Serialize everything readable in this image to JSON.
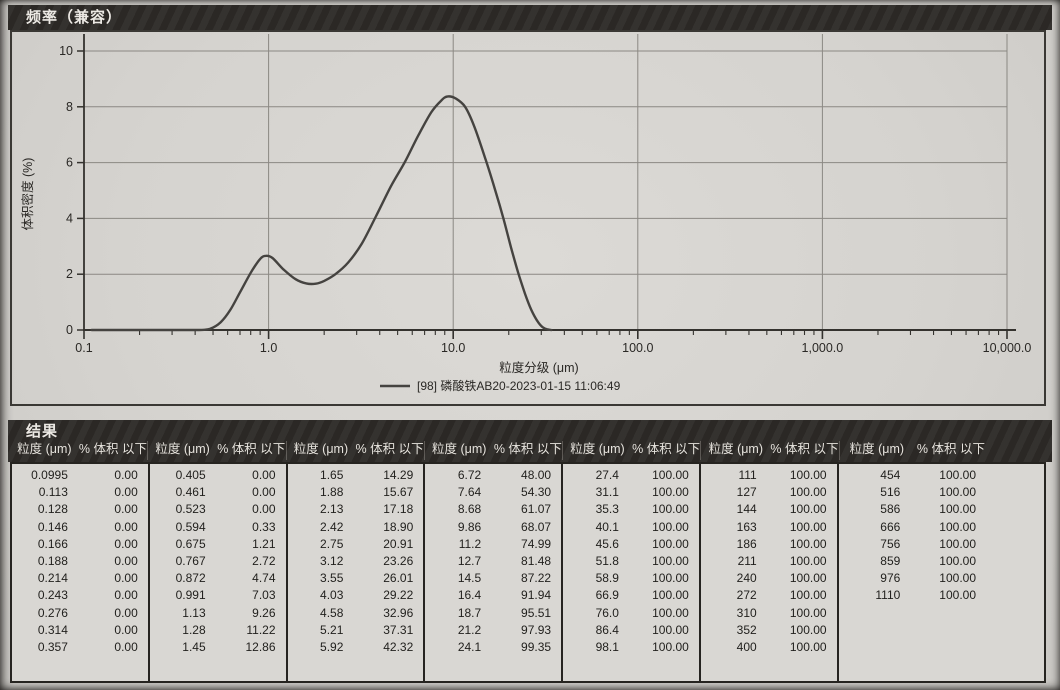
{
  "chart_data": {
    "type": "line",
    "title": "频率（兼容）",
    "xlabel": "粒度分级 (μm)",
    "ylabel": "体积密度 (%)",
    "x_scale": "log",
    "xlim": [
      0.1,
      10000
    ],
    "ylim": [
      0,
      10
    ],
    "x_tick_values": [
      0.1,
      1,
      10,
      100,
      1000,
      10000
    ],
    "x_tick_labels": [
      "0.1",
      "1.0",
      "10.0",
      "100.0",
      "1,000.0",
      "10,000.0"
    ],
    "y_ticks": [
      0,
      2,
      4,
      6,
      8,
      10
    ],
    "grid": true,
    "legend_position": "bottom-center",
    "series": [
      {
        "name": "[98] 磷酸铁AB20-2023-01-15 11:06:49",
        "color": "#454340",
        "x": [
          0.11,
          0.2,
          0.3,
          0.42,
          0.48,
          0.55,
          0.62,
          0.7,
          0.8,
          0.9,
          0.97,
          1.05,
          1.2,
          1.4,
          1.6,
          1.8,
          2.0,
          2.3,
          2.7,
          3.2,
          3.8,
          4.6,
          5.5,
          6.5,
          7.6,
          8.6,
          9.3,
          10.3,
          11.6,
          13.0,
          15.0,
          17.0,
          18.7,
          20.5,
          22.5,
          24.5,
          26.5,
          28.5,
          30.5,
          32.5,
          34.0
        ],
        "y": [
          0,
          0,
          0,
          0,
          0.04,
          0.28,
          0.72,
          1.35,
          2.05,
          2.55,
          2.66,
          2.58,
          2.18,
          1.82,
          1.67,
          1.66,
          1.76,
          2.0,
          2.42,
          3.1,
          4.05,
          5.15,
          6.05,
          7.0,
          7.8,
          8.22,
          8.37,
          8.3,
          8.0,
          7.3,
          6.1,
          4.95,
          4.0,
          3.0,
          2.05,
          1.3,
          0.72,
          0.33,
          0.1,
          0.02,
          0
        ]
      }
    ]
  },
  "table": {
    "title": "结果",
    "column_headers": {
      "size": "粒度 (μm)",
      "pct": "% 体积 以下"
    },
    "groups": [
      [
        [
          "0.0995",
          "0.00"
        ],
        [
          "0.113",
          "0.00"
        ],
        [
          "0.128",
          "0.00"
        ],
        [
          "0.146",
          "0.00"
        ],
        [
          "0.166",
          "0.00"
        ],
        [
          "0.188",
          "0.00"
        ],
        [
          "0.214",
          "0.00"
        ],
        [
          "0.243",
          "0.00"
        ],
        [
          "0.276",
          "0.00"
        ],
        [
          "0.314",
          "0.00"
        ],
        [
          "0.357",
          "0.00"
        ]
      ],
      [
        [
          "0.405",
          "0.00"
        ],
        [
          "0.461",
          "0.00"
        ],
        [
          "0.523",
          "0.00"
        ],
        [
          "0.594",
          "0.33"
        ],
        [
          "0.675",
          "1.21"
        ],
        [
          "0.767",
          "2.72"
        ],
        [
          "0.872",
          "4.74"
        ],
        [
          "0.991",
          "7.03"
        ],
        [
          "1.13",
          "9.26"
        ],
        [
          "1.28",
          "11.22"
        ],
        [
          "1.45",
          "12.86"
        ]
      ],
      [
        [
          "1.65",
          "14.29"
        ],
        [
          "1.88",
          "15.67"
        ],
        [
          "2.13",
          "17.18"
        ],
        [
          "2.42",
          "18.90"
        ],
        [
          "2.75",
          "20.91"
        ],
        [
          "3.12",
          "23.26"
        ],
        [
          "3.55",
          "26.01"
        ],
        [
          "4.03",
          "29.22"
        ],
        [
          "4.58",
          "32.96"
        ],
        [
          "5.21",
          "37.31"
        ],
        [
          "5.92",
          "42.32"
        ]
      ],
      [
        [
          "6.72",
          "48.00"
        ],
        [
          "7.64",
          "54.30"
        ],
        [
          "8.68",
          "61.07"
        ],
        [
          "9.86",
          "68.07"
        ],
        [
          "11.2",
          "74.99"
        ],
        [
          "12.7",
          "81.48"
        ],
        [
          "14.5",
          "87.22"
        ],
        [
          "16.4",
          "91.94"
        ],
        [
          "18.7",
          "95.51"
        ],
        [
          "21.2",
          "97.93"
        ],
        [
          "24.1",
          "99.35"
        ]
      ],
      [
        [
          "27.4",
          "100.00"
        ],
        [
          "31.1",
          "100.00"
        ],
        [
          "35.3",
          "100.00"
        ],
        [
          "40.1",
          "100.00"
        ],
        [
          "45.6",
          "100.00"
        ],
        [
          "51.8",
          "100.00"
        ],
        [
          "58.9",
          "100.00"
        ],
        [
          "66.9",
          "100.00"
        ],
        [
          "76.0",
          "100.00"
        ],
        [
          "86.4",
          "100.00"
        ],
        [
          "98.1",
          "100.00"
        ]
      ],
      [
        [
          "111",
          "100.00"
        ],
        [
          "127",
          "100.00"
        ],
        [
          "144",
          "100.00"
        ],
        [
          "163",
          "100.00"
        ],
        [
          "186",
          "100.00"
        ],
        [
          "211",
          "100.00"
        ],
        [
          "240",
          "100.00"
        ],
        [
          "272",
          "100.00"
        ],
        [
          "310",
          "100.00"
        ],
        [
          "352",
          "100.00"
        ],
        [
          "400",
          "100.00"
        ]
      ],
      [
        [
          "454",
          "100.00"
        ],
        [
          "516",
          "100.00"
        ],
        [
          "586",
          "100.00"
        ],
        [
          "666",
          "100.00"
        ],
        [
          "756",
          "100.00"
        ],
        [
          "859",
          "100.00"
        ],
        [
          "976",
          "100.00"
        ],
        [
          "1110",
          "100.00"
        ]
      ]
    ]
  },
  "colors": {
    "band_bg": "#2e2b28",
    "band_text": "#ece9e4",
    "paper": "#d7d5d1",
    "border": "#2a2824",
    "grid": "#8b8883",
    "axis": "#34322e",
    "text": "#2a2825",
    "curve": "#454340"
  }
}
